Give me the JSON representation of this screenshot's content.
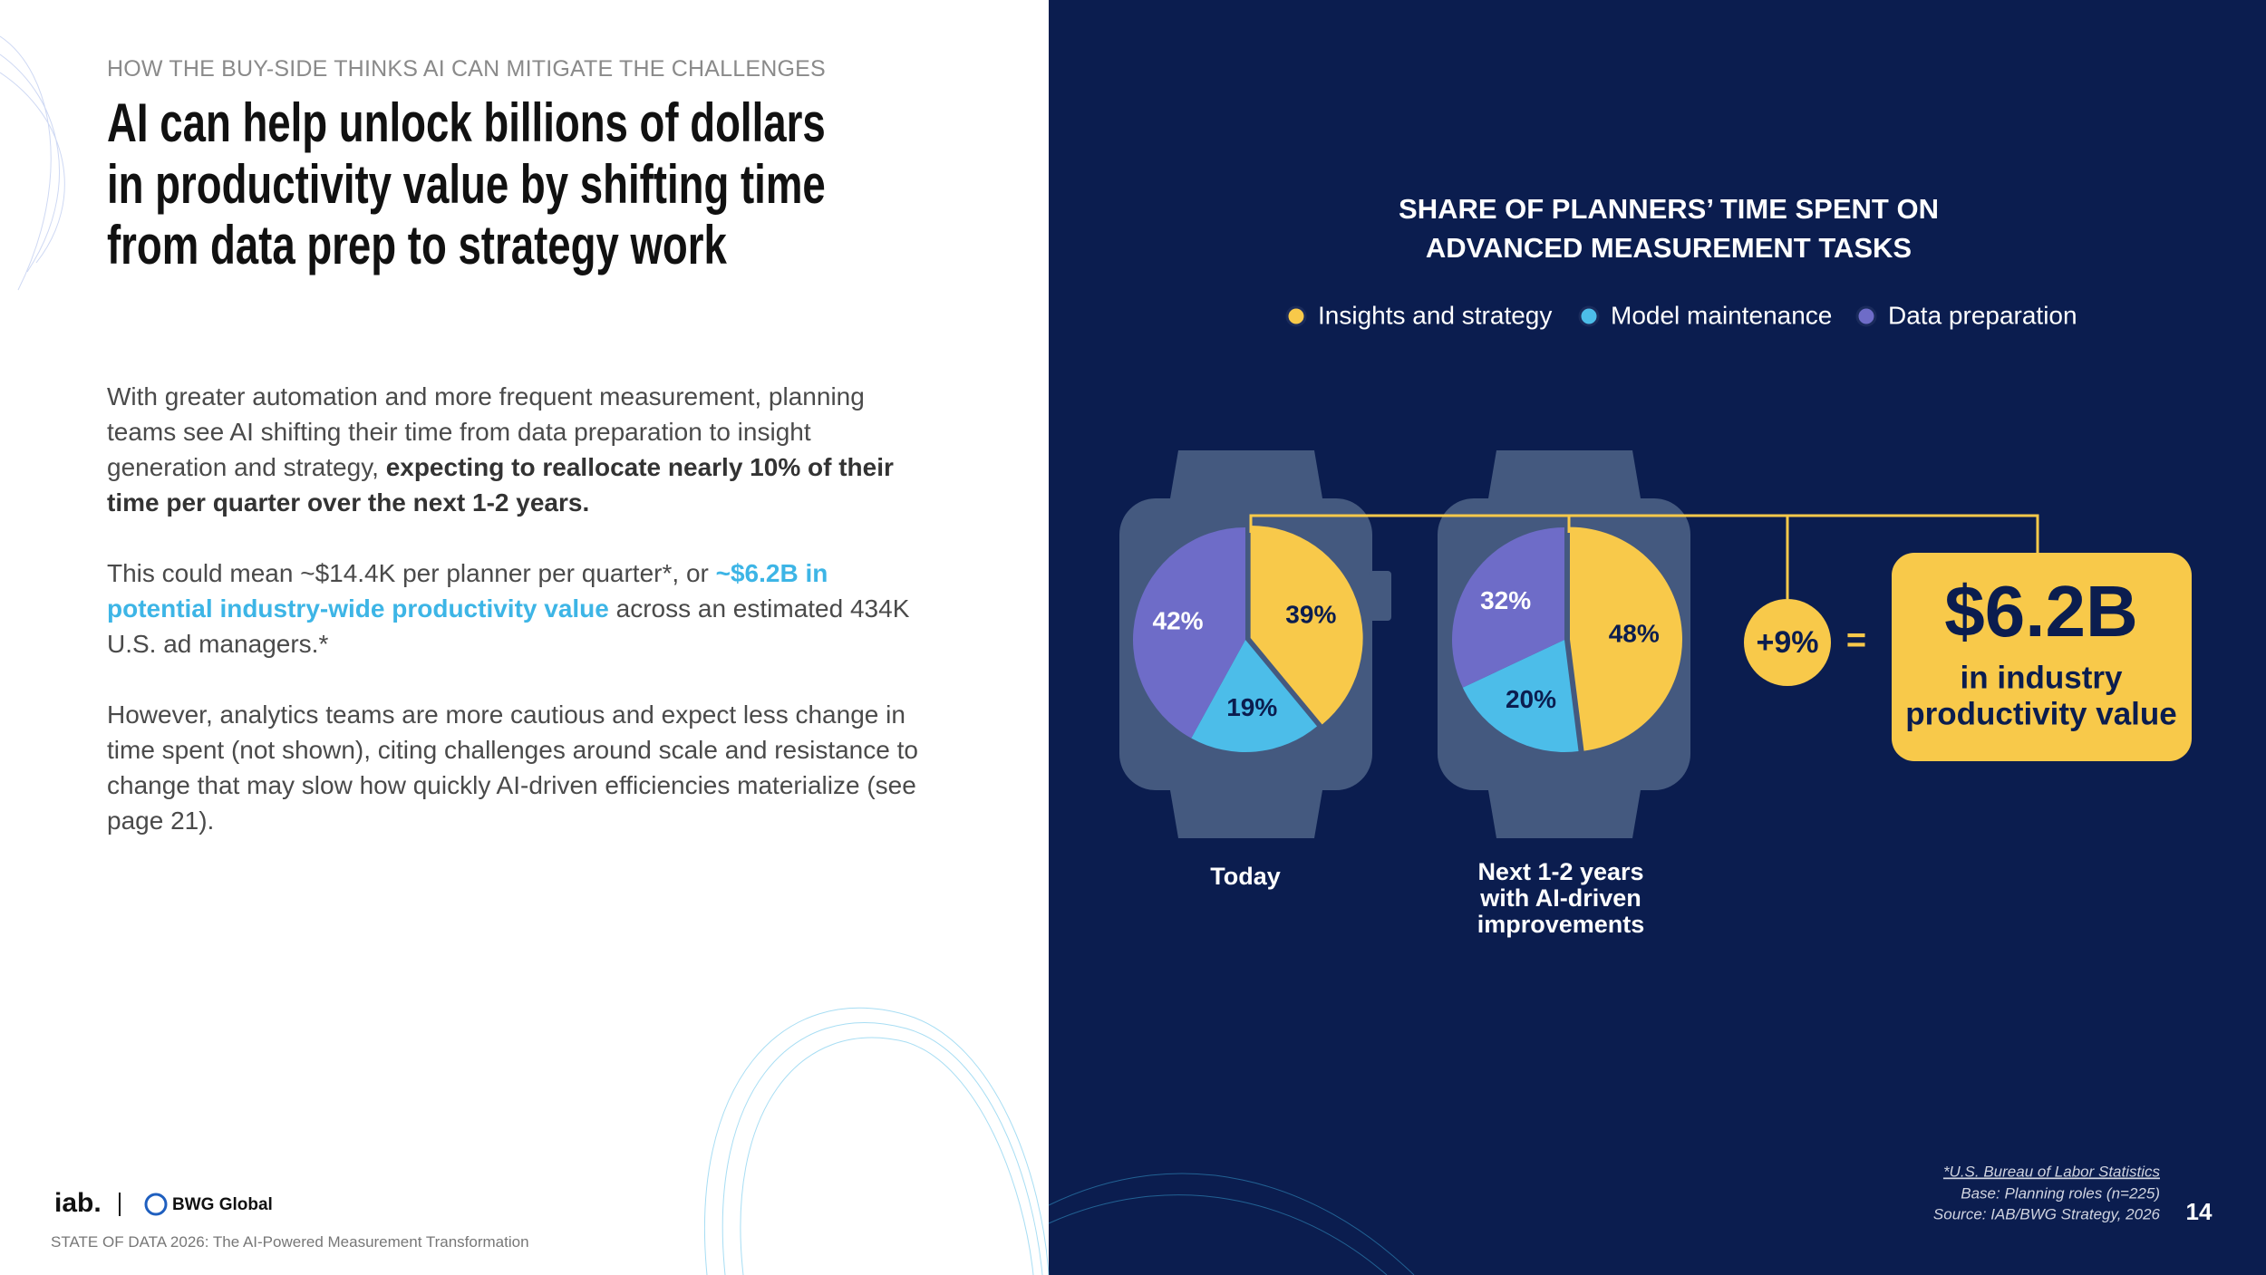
{
  "header": {
    "kicker": "HOW THE BUY-SIDE THINKS AI CAN MITIGATE THE CHALLENGES",
    "title_lines": [
      "AI can help unlock billions of dollars",
      "in productivity value by shifting time",
      "from data prep to strategy work"
    ]
  },
  "body": {
    "paragraphs": [
      [
        {
          "text": "With greater automation and more frequent measurement, planning teams see AI shifting their time from data preparation to insight generation and strategy, ",
          "style": "normal"
        },
        {
          "text": "expecting to reallocate nearly 10% of their time per quarter over the next 1-2 years.",
          "style": "bold"
        }
      ],
      [
        {
          "text": "This could mean ~$14.4K per planner per quarter*, or ",
          "style": "normal"
        },
        {
          "text": "~$6.2B in potential industry-wide productivity value",
          "style": "highlight"
        },
        {
          "text": " across an estimated 434K U.S. ad managers.*",
          "style": "normal"
        }
      ],
      [
        {
          "text": "However, analytics teams are more cautious and expect less change in time spent (not shown), citing challenges around scale and resistance to change that may slow how quickly AI-driven efficiencies materialize (see page 21).",
          "style": "normal"
        }
      ]
    ]
  },
  "chart_header": {
    "title_lines": [
      "SHARE OF PLANNERS’ TIME SPENT ON",
      "ADVANCED MEASUREMENT TASKS"
    ],
    "legend": [
      {
        "name": "Insights and strategy",
        "color": "#f8c94a"
      },
      {
        "name": "Model maintenance",
        "color": "#4cbde9"
      },
      {
        "name": "Data preparation",
        "color": "#6e6cc8"
      }
    ]
  },
  "chart_data": [
    {
      "type": "pie",
      "label_lines": [
        "Today"
      ],
      "values": [
        39,
        19,
        42
      ],
      "value_labels": [
        "39%",
        "19%",
        "42%"
      ]
    },
    {
      "type": "pie",
      "label_lines": [
        "Next 1-2 years",
        "with AI-driven",
        "improvements"
      ],
      "values": [
        48,
        20,
        32
      ],
      "value_labels": [
        "48%",
        "20%",
        "32%"
      ]
    }
  ],
  "callout": {
    "change": "+9%",
    "equals": "=",
    "amount": "$6.2B",
    "caption_lines": [
      "in industry",
      "productivity value"
    ]
  },
  "footer": {
    "notes": [
      "*U.S. Bureau of Labor Statistics",
      "Base: Planning roles (n=225)",
      "Source: IAB/BWG Strategy, 2026"
    ],
    "page": "14",
    "brand_iab": "iab.",
    "brand_bwg": "BWG Global",
    "publication": "STATE OF DATA 2026: The AI-Powered Measurement Transformation"
  }
}
